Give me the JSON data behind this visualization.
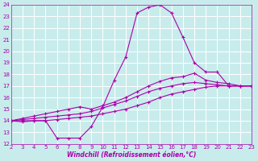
{
  "xlabel": "Windchill (Refroidissement éolien,°C)",
  "xlim": [
    2,
    23
  ],
  "ylim": [
    12,
    24
  ],
  "xticks": [
    2,
    3,
    4,
    5,
    6,
    7,
    8,
    9,
    10,
    11,
    12,
    13,
    14,
    15,
    16,
    17,
    18,
    19,
    20,
    21,
    22,
    23
  ],
  "yticks": [
    12,
    13,
    14,
    15,
    16,
    17,
    18,
    19,
    20,
    21,
    22,
    23,
    24
  ],
  "bg_color": "#c8ecec",
  "grid_color": "#b0d8d8",
  "line_color": "#aa00aa",
  "series": [
    {
      "x": [
        2,
        3,
        4,
        5,
        6,
        7,
        8,
        9,
        10,
        11,
        12,
        13,
        14,
        15,
        16,
        17,
        18,
        19,
        20,
        21,
        22,
        23
      ],
      "y": [
        14,
        14,
        14,
        14,
        12.5,
        12.5,
        12.5,
        13.5,
        15.2,
        17.5,
        19.5,
        23.3,
        23.8,
        24.0,
        23.3,
        21.2,
        19.0,
        18.2,
        18.2,
        17.0,
        17.0,
        17.0
      ]
    },
    {
      "x": [
        2,
        3,
        4,
        5,
        6,
        7,
        8,
        9,
        10,
        11,
        12,
        13,
        14,
        15,
        16,
        17,
        18,
        19,
        20,
        21,
        22,
        23
      ],
      "y": [
        14,
        13.9,
        14.0,
        14.0,
        14.1,
        14.2,
        14.3,
        14.4,
        14.6,
        14.8,
        15.0,
        15.3,
        15.6,
        16.0,
        16.3,
        16.5,
        16.7,
        16.9,
        17.0,
        17.0,
        17.0,
        17.0
      ]
    },
    {
      "x": [
        2,
        3,
        4,
        5,
        6,
        7,
        8,
        9,
        10,
        11,
        12,
        13,
        14,
        15,
        16,
        17,
        18,
        19,
        20,
        21,
        22,
        23
      ],
      "y": [
        14,
        14.1,
        14.2,
        14.3,
        14.4,
        14.5,
        14.6,
        14.8,
        15.1,
        15.4,
        15.7,
        16.1,
        16.5,
        16.8,
        17.0,
        17.2,
        17.3,
        17.2,
        17.1,
        17.0,
        17.0,
        17.0
      ]
    },
    {
      "x": [
        2,
        3,
        4,
        5,
        6,
        7,
        8,
        9,
        10,
        11,
        12,
        13,
        14,
        15,
        16,
        17,
        18,
        19,
        20,
        21,
        22,
        23
      ],
      "y": [
        14,
        14.2,
        14.4,
        14.6,
        14.8,
        15.0,
        15.2,
        15.0,
        15.3,
        15.6,
        16.0,
        16.5,
        17.0,
        17.4,
        17.7,
        17.8,
        18.1,
        17.5,
        17.3,
        17.2,
        17.0,
        17.0
      ]
    }
  ]
}
